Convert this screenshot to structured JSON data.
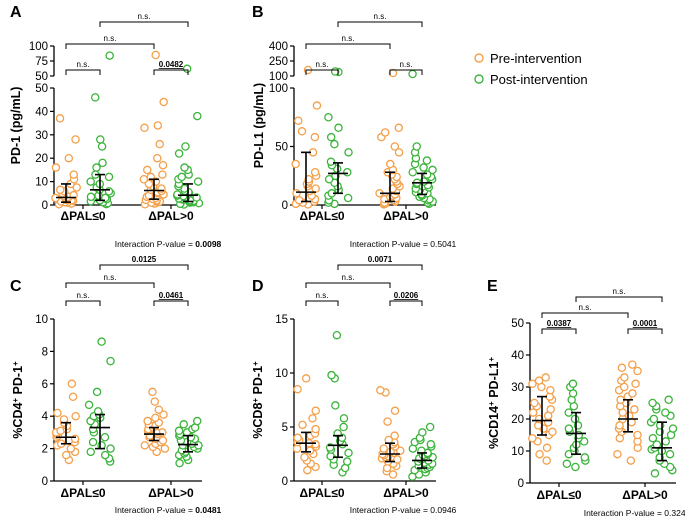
{
  "legend": {
    "pre_label": "Pre-intervention",
    "post_label": "Post-intervention",
    "pre_color": "#f4a04a",
    "post_color": "#3cb43c",
    "marker": "open-circle"
  },
  "chart_data": [
    {
      "type": "scatter",
      "panel": "A",
      "ylabel": "PD-1 (pg/mL)",
      "categories": [
        "ΔPAL≤0",
        "ΔPAL>0"
      ],
      "axis_break": true,
      "lower_segment": {
        "ylim": [
          0,
          50
        ],
        "ticks": [
          "0",
          "10",
          "20",
          "30",
          "40",
          "50"
        ]
      },
      "upper_segment": {
        "ylim": [
          50,
          100
        ],
        "ticks": [
          "50",
          "75",
          "100"
        ]
      },
      "series": [
        {
          "name": "Pre-intervention",
          "group": "ΔPAL≤0",
          "values": [
            0.3,
            0.6,
            1,
            1.2,
            1.5,
            1.8,
            2,
            2.2,
            2.5,
            2.8,
            3,
            3.2,
            3.5,
            3.8,
            4.2,
            5,
            5.8,
            6.5,
            7.5,
            9,
            11,
            13,
            16,
            20,
            28,
            37
          ],
          "median": 3.2,
          "iqr": [
            1.2,
            9
          ]
        },
        {
          "name": "Post-intervention",
          "group": "ΔPAL≤0",
          "values": [
            0.4,
            0.8,
            1.2,
            1.6,
            2,
            2.5,
            3,
            3.5,
            4,
            5,
            5.8,
            6.5,
            7.5,
            9,
            10,
            12,
            13,
            16,
            18,
            25,
            28,
            46,
            84
          ],
          "median": 6.5,
          "iqr": [
            2,
            13
          ]
        },
        {
          "name": "Pre-intervention",
          "group": "ΔPAL>0",
          "values": [
            0.3,
            0.6,
            1,
            1.2,
            1.5,
            1.8,
            2,
            2.2,
            2.5,
            3,
            3.5,
            4,
            4.5,
            5,
            5.5,
            6,
            6.5,
            7,
            8,
            9,
            10,
            11,
            12,
            13,
            15,
            17,
            20,
            26,
            33,
            34,
            44,
            85
          ],
          "median": 6.2,
          "iqr": [
            2.5,
            11
          ]
        },
        {
          "name": "Post-intervention",
          "group": "ΔPAL>0",
          "values": [
            0.2,
            0.5,
            0.8,
            1,
            1.2,
            1.5,
            1.8,
            2,
            2.2,
            2.5,
            2.8,
            3,
            3.2,
            3.5,
            3.8,
            4,
            4.5,
            5,
            5.5,
            6,
            7,
            8,
            9,
            10,
            11,
            12,
            13,
            15,
            16,
            22,
            25,
            38,
            62
          ],
          "median": 4.2,
          "iqr": [
            1.5,
            9
          ]
        }
      ],
      "annotations": {
        "top": "n.s.",
        "cross": "n.s.",
        "left_pair": "n.s.",
        "right_pair": "0.0482",
        "interaction_label": "Interaction P-value = ",
        "interaction_value": "0.0098"
      }
    },
    {
      "type": "scatter",
      "panel": "B",
      "ylabel": "PD-L1 (pg/mL)",
      "categories": [
        "ΔPAL≤0",
        "ΔPAL>0"
      ],
      "axis_break": true,
      "lower_segment": {
        "ylim": [
          0,
          100
        ],
        "ticks": [
          "0",
          "50",
          "100"
        ]
      },
      "upper_segment": {
        "ylim": [
          100,
          400
        ],
        "ticks": [
          "100",
          "250",
          "400"
        ]
      },
      "series": [
        {
          "name": "Pre-intervention",
          "group": "ΔPAL≤0",
          "values": [
            0.5,
            1,
            2,
            3,
            4,
            5,
            6,
            8,
            10,
            12,
            14,
            16,
            18,
            20,
            22,
            25,
            28,
            35,
            45,
            58,
            63,
            72,
            85,
            160
          ],
          "median": 11,
          "iqr": [
            3,
            45
          ]
        },
        {
          "name": "Post-intervention",
          "group": "ΔPAL≤0",
          "values": [
            1,
            2,
            4,
            6,
            8,
            10,
            13,
            16,
            19,
            22,
            25,
            28,
            31,
            34,
            37,
            45,
            52,
            58,
            66,
            75,
            140,
            145
          ],
          "median": 27,
          "iqr": [
            10,
            36
          ]
        },
        {
          "name": "Pre-intervention",
          "group": "ΔPAL>0",
          "values": [
            0.5,
            1,
            2,
            3,
            4,
            5,
            6,
            7,
            8,
            9,
            10,
            12,
            14,
            16,
            18,
            20,
            22,
            24,
            26,
            28,
            30,
            35,
            45,
            50,
            58,
            62,
            66,
            130
          ],
          "median": 10,
          "iqr": [
            3,
            28
          ]
        },
        {
          "name": "Post-intervention",
          "group": "ΔPAL>0",
          "values": [
            1,
            2,
            3,
            4,
            5,
            6,
            7,
            8,
            9,
            10,
            11,
            12,
            13,
            14,
            15,
            16,
            17,
            18,
            19,
            20,
            22,
            24,
            26,
            28,
            30,
            32,
            35,
            38,
            40,
            45,
            50,
            120
          ],
          "median": 19,
          "iqr": [
            9,
            27
          ]
        }
      ],
      "annotations": {
        "top": "n.s.",
        "cross": "n.s.",
        "left_pair": "n.s.",
        "right_pair": "n.s.",
        "interaction_label": "Interaction P-value = ",
        "interaction_value": "0.5041"
      }
    },
    {
      "type": "scatter",
      "panel": "C",
      "ylabel": "%CD4+ PD-1+",
      "categories": [
        "ΔPAL≤0",
        "ΔPAL>0"
      ],
      "ylim": [
        0,
        10
      ],
      "ticks": [
        "0",
        "2",
        "4",
        "6",
        "8",
        "10"
      ],
      "series": [
        {
          "name": "Pre-intervention",
          "group": "ΔPAL≤0",
          "values": [
            1.3,
            1.6,
            1.8,
            2.0,
            2.2,
            2.3,
            2.4,
            2.5,
            2.6,
            2.7,
            2.8,
            2.9,
            3.0,
            3.1,
            3.2,
            3.4,
            3.6,
            3.8,
            4.0,
            4.2,
            5.2,
            6.0
          ],
          "median": 2.7,
          "iqr": [
            2.3,
            3.6
          ]
        },
        {
          "name": "Post-intervention",
          "group": "ΔPAL≤0",
          "values": [
            1.2,
            1.4,
            1.6,
            1.8,
            2.0,
            2.2,
            2.4,
            2.7,
            3.0,
            3.2,
            3.5,
            3.7,
            3.9,
            4.0,
            4.1,
            4.3,
            4.7,
            5.5,
            7.4,
            8.6
          ],
          "median": 3.3,
          "iqr": [
            2.0,
            4.1
          ]
        },
        {
          "name": "Pre-intervention",
          "group": "ΔPAL>0",
          "values": [
            1.8,
            2.0,
            2.1,
            2.2,
            2.3,
            2.4,
            2.5,
            2.6,
            2.7,
            2.8,
            2.9,
            3.0,
            3.0,
            3.1,
            3.2,
            3.3,
            3.4,
            3.5,
            3.6,
            3.7,
            3.9,
            4.1,
            4.4,
            4.9,
            5.5
          ],
          "median": 2.9,
          "iqr": [
            2.5,
            3.3
          ]
        },
        {
          "name": "Post-intervention",
          "group": "ΔPAL>0",
          "values": [
            1.1,
            1.3,
            1.5,
            1.6,
            1.7,
            1.8,
            1.9,
            2.0,
            2.1,
            2.2,
            2.2,
            2.3,
            2.4,
            2.5,
            2.6,
            2.7,
            2.8,
            2.9,
            3.0,
            3.1,
            3.2,
            3.3,
            3.5,
            3.7
          ],
          "median": 2.25,
          "iqr": [
            1.8,
            2.8
          ]
        }
      ],
      "annotations": {
        "top": "0.0125",
        "cross": "n.s.",
        "left_pair": "n.s.",
        "right_pair": "0.0461",
        "interaction_label": "Interaction P-value = ",
        "interaction_value": "0.0481"
      }
    },
    {
      "type": "scatter",
      "panel": "D",
      "ylabel": "%CD8+ PD-1+",
      "categories": [
        "ΔPAL≤0",
        "ΔPAL>0"
      ],
      "ylim": [
        0,
        15
      ],
      "ticks": [
        "0",
        "5",
        "10",
        "15"
      ],
      "series": [
        {
          "name": "Pre-intervention",
          "group": "ΔPAL≤0",
          "values": [
            1.0,
            1.3,
            1.6,
            1.9,
            2.2,
            2.5,
            2.8,
            3.0,
            3.2,
            3.4,
            3.5,
            3.6,
            3.8,
            4.0,
            4.2,
            4.4,
            4.8,
            5.2,
            5.8,
            6.5,
            8.5,
            9.5
          ],
          "median": 3.5,
          "iqr": [
            2.7,
            4.5
          ]
        },
        {
          "name": "Post-intervention",
          "group": "ΔPAL≤0",
          "values": [
            0.8,
            1.2,
            1.5,
            1.8,
            2.0,
            2.3,
            2.6,
            2.9,
            3.1,
            3.4,
            3.7,
            4.0,
            4.4,
            5.0,
            5.8,
            7.0,
            9.5,
            9.8,
            13.5
          ],
          "median": 3.3,
          "iqr": [
            2.2,
            4.2
          ]
        },
        {
          "name": "Pre-intervention",
          "group": "ΔPAL>0",
          "values": [
            0.6,
            0.9,
            1.2,
            1.4,
            1.6,
            1.8,
            2.0,
            2.1,
            2.2,
            2.3,
            2.4,
            2.5,
            2.6,
            2.7,
            2.8,
            3.0,
            3.2,
            3.4,
            3.6,
            3.8,
            4.2,
            5.5,
            6.5,
            8.2,
            8.4
          ],
          "median": 2.5,
          "iqr": [
            1.8,
            3.5
          ]
        },
        {
          "name": "Post-intervention",
          "group": "ΔPAL>0",
          "values": [
            0.4,
            0.6,
            0.8,
            1.0,
            1.1,
            1.2,
            1.3,
            1.4,
            1.5,
            1.6,
            1.7,
            1.8,
            1.9,
            2.0,
            2.1,
            2.2,
            2.3,
            2.4,
            2.5,
            2.6,
            2.8,
            3.0,
            3.2,
            3.4,
            3.6,
            3.8,
            4.0,
            4.5,
            5.0
          ],
          "median": 1.9,
          "iqr": [
            1.2,
            2.6
          ]
        }
      ],
      "annotations": {
        "top": "0.0071",
        "cross": "n.s.",
        "left_pair": "n.s.",
        "right_pair": "0.0206",
        "interaction_label": "Interaction P-value = ",
        "interaction_value": "0.0946"
      }
    },
    {
      "type": "scatter",
      "panel": "E",
      "ylabel": "%CD14+ PD-L1+",
      "categories": [
        "ΔPAL≤0",
        "ΔPAL>0"
      ],
      "ylim": [
        0,
        50
      ],
      "ticks": [
        "0",
        "10",
        "20",
        "30",
        "40",
        "50"
      ],
      "series": [
        {
          "name": "Pre-intervention",
          "group": "ΔPAL≤0",
          "values": [
            7,
            9,
            11,
            13,
            14,
            15,
            16,
            17,
            18,
            19,
            20,
            21,
            22,
            23,
            24,
            25,
            26,
            27,
            29,
            30,
            31,
            32,
            33
          ],
          "median": 19.5,
          "iqr": [
            15,
            27
          ]
        },
        {
          "name": "Post-intervention",
          "group": "ΔPAL≤0",
          "values": [
            5,
            6,
            7,
            8,
            9,
            10,
            11,
            12,
            13,
            14,
            15,
            16,
            17,
            18,
            20,
            22,
            24,
            26,
            28,
            30,
            31
          ],
          "median": 15.5,
          "iqr": [
            9,
            22
          ]
        },
        {
          "name": "Pre-intervention",
          "group": "ΔPAL>0",
          "values": [
            7,
            9,
            11,
            13,
            14,
            15,
            16,
            17,
            18,
            19,
            20,
            21,
            22,
            23,
            24,
            25,
            26,
            27,
            28,
            29,
            30,
            31,
            32,
            33,
            35,
            36,
            37
          ],
          "median": 20,
          "iqr": [
            16,
            26
          ]
        },
        {
          "name": "Post-intervention",
          "group": "ΔPAL>0",
          "values": [
            3,
            4,
            5,
            6,
            7,
            8,
            9,
            10,
            10.5,
            11,
            12,
            13,
            14,
            15,
            16,
            17,
            18,
            19,
            20,
            21,
            22,
            23,
            24,
            25,
            26
          ],
          "median": 11,
          "iqr": [
            7,
            19
          ]
        }
      ],
      "annotations": {
        "top": "n.s.",
        "cross": "n.s.",
        "left_pair": "0.0387",
        "right_pair": "0.0001",
        "interaction_label": "Interaction P-value = ",
        "interaction_value": "0.3242"
      }
    }
  ]
}
